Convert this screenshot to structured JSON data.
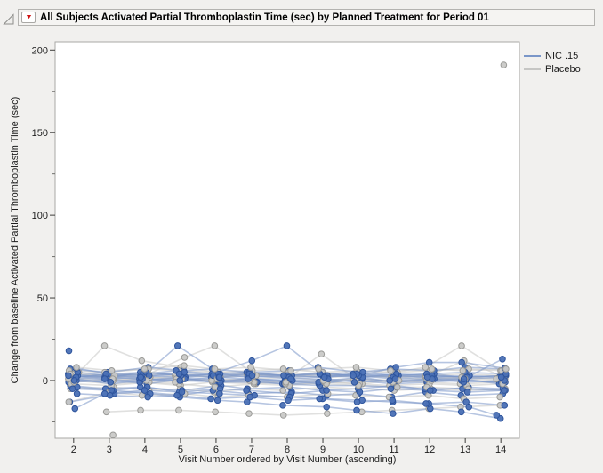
{
  "icons": {
    "red_triangle": "▼"
  },
  "chart_data": {
    "type": "line",
    "title": "All Subjects Activated Partial Thromboplastin Time (sec) by Planned Treatment for Period 01",
    "xlabel": "Visit Number ordered by Visit Number (ascending)",
    "ylabel": "Change from baseline Activated Partial Thromboplastin Time (sec)",
    "x_ticks": [
      2,
      3,
      4,
      5,
      6,
      7,
      8,
      9,
      10,
      11,
      12,
      13,
      14
    ],
    "xlim": [
      1.48,
      14.52
    ],
    "ylim": [
      -35,
      205
    ],
    "y_major_ticks": [
      0,
      50,
      100,
      150,
      200
    ],
    "y_minor_ticks": [
      -25,
      25,
      75,
      125,
      175
    ],
    "grid": false,
    "legend_position": "top-right-outside",
    "background": "#ffffff",
    "frame_color": "#a9a8a5",
    "groups": [
      {
        "name": "NIC .15",
        "point_color": "#4a70b5",
        "point_edge": "#2e549c",
        "line_color": "#7a96c8",
        "subjects": [
          [
            4,
            2,
            5,
            3,
            2,
            4,
            3,
            5,
            2,
            3,
            4,
            2,
            3
          ],
          [
            1,
            -2,
            0,
            2,
            -1,
            1,
            0,
            -2,
            1,
            -1,
            0,
            1,
            -2
          ],
          [
            -3,
            -5,
            -4,
            -6,
            -3,
            -5,
            -4,
            -6,
            -5,
            -3,
            -6,
            -4,
            -5
          ],
          [
            7,
            5,
            8,
            6,
            7,
            5,
            6,
            8,
            5,
            7,
            6,
            8,
            7
          ],
          [
            -13,
            -8,
            -7,
            -9,
            -6,
            -8,
            -7,
            -9,
            -8,
            -10,
            -7,
            -9,
            -8
          ],
          [
            3,
            2,
            1,
            0,
            -1,
            -1,
            -2,
            -3,
            -3,
            -4,
            -5,
            -5,
            -6
          ],
          [
            0,
            1,
            -1,
            2,
            0,
            1,
            -1,
            0,
            2,
            -1,
            1,
            0,
            -1
          ],
          [
            2,
            3,
            2,
            21,
            4,
            2,
            3,
            2,
            4,
            3,
            2,
            3,
            2
          ],
          [
            1,
            2,
            3,
            2,
            4,
            12,
            21,
            3,
            2,
            4,
            3,
            2,
            3
          ],
          [
            -4,
            -6,
            -8,
            -10,
            -12,
            -13,
            -15,
            -16,
            -18,
            -20,
            -17,
            -19,
            -23
          ],
          [
            5,
            3,
            4,
            6,
            4,
            5,
            3,
            4,
            5,
            3,
            4,
            5,
            4
          ],
          [
            -1,
            0,
            -2,
            1,
            -1,
            0,
            -2,
            -1,
            0,
            -2,
            -1,
            0,
            -1
          ],
          [
            18,
            null,
            null,
            null,
            null,
            null,
            null,
            null,
            null,
            null,
            null,
            null,
            null
          ],
          [
            7.5,
            4,
            5,
            3,
            4,
            5,
            3,
            4,
            3,
            8,
            11,
            11,
            7.5
          ],
          [
            -5,
            -6,
            -4,
            -7,
            -5,
            -6,
            -8,
            -6,
            -7,
            -5,
            -6,
            -7,
            -6
          ],
          [
            2,
            4,
            3,
            5,
            3,
            4,
            2,
            3,
            4,
            2,
            3,
            2,
            13
          ],
          [
            0,
            -1,
            1,
            0,
            2,
            1,
            0,
            1,
            -1,
            0,
            1,
            -1,
            0
          ],
          [
            -17,
            -8,
            -6,
            -7,
            -8,
            -9,
            -10,
            -11,
            -12,
            -13,
            -14,
            -16,
            -21
          ],
          [
            3,
            1,
            2,
            4,
            2,
            3,
            1,
            2,
            3,
            1,
            2,
            1,
            2
          ],
          [
            -8,
            -9,
            -10,
            -9,
            -11,
            -10,
            -12,
            -11,
            -13,
            -12,
            -14,
            -13,
            -15
          ]
        ]
      },
      {
        "name": "Placebo",
        "point_color": "#c9c9c7",
        "point_edge": "#9a9a97",
        "line_color": "#c6c6c4",
        "subjects": [
          [
            3,
            2,
            4,
            3,
            2,
            3,
            4,
            2,
            3,
            2,
            3,
            4,
            3
          ],
          [
            0,
            -2,
            -1,
            -3,
            -1,
            -2,
            0,
            -1,
            -2,
            0,
            -1,
            -2,
            -1
          ],
          [
            -5,
            -4,
            -6,
            -5,
            -7,
            -5,
            -6,
            -4,
            -5,
            -6,
            -5,
            -6,
            -5
          ],
          [
            5,
            21,
            12,
            8,
            5,
            4,
            3,
            2,
            3,
            2,
            1,
            2,
            1
          ],
          [
            2,
            3,
            4,
            14,
            21,
            3,
            2,
            4,
            3,
            2,
            3,
            2,
            3
          ],
          [
            1,
            2,
            1,
            3,
            2,
            4,
            3,
            16,
            2,
            3,
            2,
            12,
            3
          ],
          [
            4,
            3,
            5,
            4,
            3,
            4,
            5,
            3,
            4,
            5,
            8,
            21,
            6
          ],
          [
            6,
            5,
            7,
            6,
            5,
            6,
            7,
            5,
            6,
            5,
            6,
            7,
            6
          ],
          [
            -13,
            -7,
            -9,
            -8,
            -10,
            -9,
            -10,
            -8,
            -9,
            -10,
            -9,
            -11,
            -10
          ],
          [
            null,
            -19,
            -18,
            -18,
            -19,
            -20,
            -21,
            -20,
            -19,
            -18,
            -17,
            -16,
            -15
          ],
          [
            null,
            -33,
            null,
            null,
            null,
            null,
            null,
            null,
            null,
            null,
            null,
            null,
            null
          ],
          [
            null,
            null,
            null,
            null,
            null,
            null,
            null,
            null,
            null,
            null,
            null,
            null,
            191
          ],
          [
            1,
            0,
            2,
            1,
            0,
            1,
            2,
            0,
            1,
            0,
            1,
            2,
            1
          ],
          [
            -2,
            -3,
            -1,
            -2,
            -4,
            -2,
            -3,
            -1,
            -2,
            -3,
            -2,
            -3,
            -2
          ],
          [
            4,
            3,
            2,
            1,
            0,
            -1,
            -2,
            -2,
            -3,
            -4,
            -4,
            -5,
            -6
          ],
          [
            8,
            6,
            7,
            9,
            7,
            8,
            6,
            7,
            8,
            6,
            7,
            6,
            7
          ],
          [
            -1,
            1,
            0,
            -1,
            1,
            0,
            -1,
            0,
            1,
            -1,
            0,
            1,
            0
          ]
        ]
      }
    ]
  }
}
